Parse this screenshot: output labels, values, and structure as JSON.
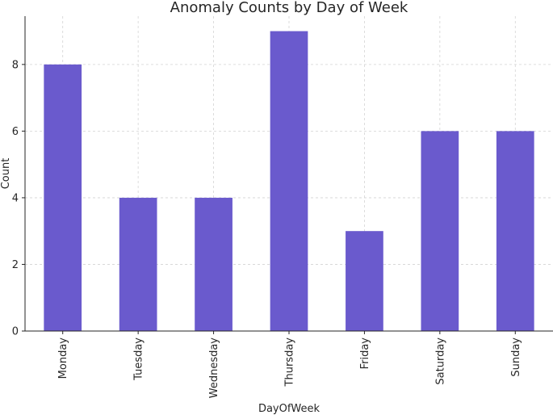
{
  "chart_data": {
    "type": "bar",
    "title": "Anomaly Counts by Day of Week",
    "xlabel": "DayOfWeek",
    "ylabel": "Count",
    "categories": [
      "Monday",
      "Tuesday",
      "Wednesday",
      "Thursday",
      "Friday",
      "Saturday",
      "Sunday"
    ],
    "values": [
      8,
      4,
      4,
      9,
      3,
      6,
      6
    ],
    "ylim": [
      0,
      9.45
    ],
    "yticks": [
      0,
      2,
      4,
      6,
      8
    ],
    "grid": true,
    "bar_color": "#6a5acd",
    "grid_color": "#d3d3d3",
    "axis_color": "#262626"
  }
}
